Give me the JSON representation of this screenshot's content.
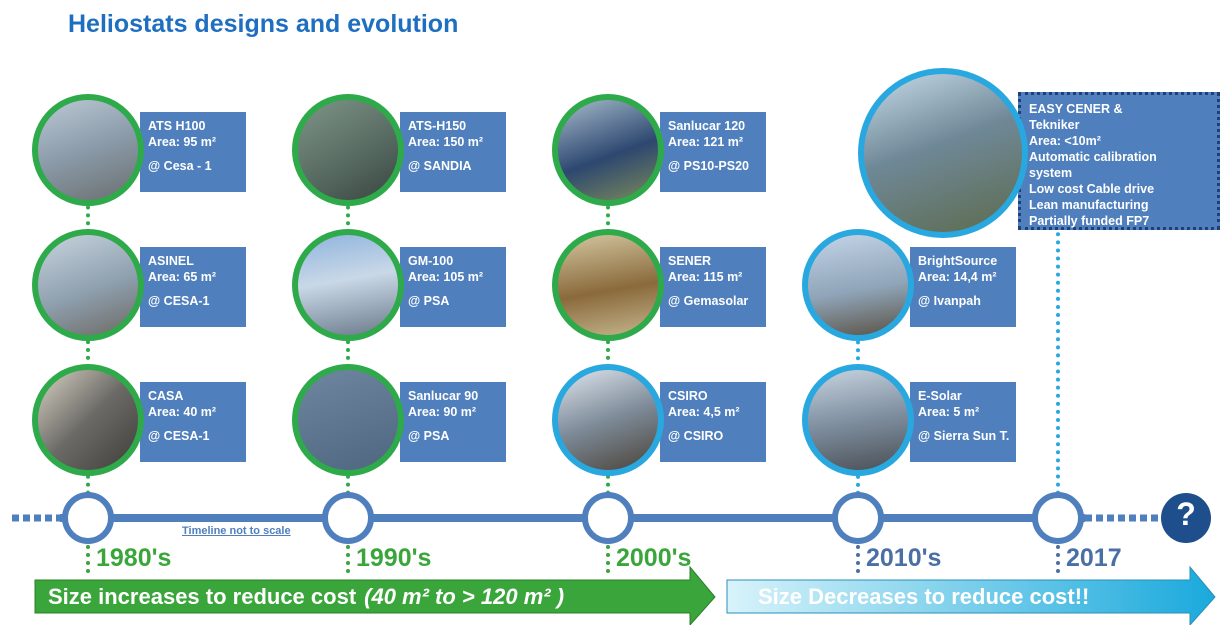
{
  "header": {
    "title": "Heliostats designs and evolution"
  },
  "cards": [
    {
      "lines": [
        "ATS H100",
        "Area: 95 m²",
        "@ Cesa - 1"
      ]
    },
    {
      "lines": [
        "ASINEL",
        "Area: 65 m²",
        "@ CESA-1"
      ]
    },
    {
      "lines": [
        "CASA",
        "Area: 40 m²",
        "@ CESA-1"
      ]
    },
    {
      "lines": [
        "ATS-H150",
        "Area: 150 m²",
        "@ SANDIA"
      ]
    },
    {
      "lines": [
        "GM-100",
        "Area: 105 m²",
        "@ PSA"
      ]
    },
    {
      "lines": [
        "Sanlucar 90",
        "Area: 90 m²",
        "@ PSA"
      ]
    },
    {
      "lines": [
        "Sanlucar 120",
        "Area: 121 m²",
        "@ PS10-PS20"
      ]
    },
    {
      "lines": [
        "SENER",
        "Area: 115 m²",
        "@ Gemasolar"
      ]
    },
    {
      "lines": [
        "CSIRO",
        "Area: 4,5 m²",
        "@ CSIRO"
      ]
    },
    {
      "lines": [
        "BrightSource",
        "Area: 14,4 m²",
        "@ Ivanpah"
      ]
    },
    {
      "lines": [
        "E-Solar",
        "Area: 5 m²",
        "@ Sierra Sun T."
      ]
    },
    {
      "lines": [
        "EASY  CENER &",
        "Tekniker",
        "Area: <10m²",
        "Automatic calibration",
        "system",
        "Low cost Cable drive",
        "Lean manufacturing",
        "Partially funded FP7"
      ]
    }
  ],
  "timeline": {
    "periods": [
      "1980's",
      "1990's",
      "2000's",
      "2010's",
      "2017"
    ],
    "note": "Timeline not to scale",
    "future": "?"
  },
  "arrows": {
    "increase": "Size increases to reduce cost",
    "increase_range": "(40 m² to > 120 m² )",
    "decrease": "Size Decreases to reduce cost!!"
  }
}
